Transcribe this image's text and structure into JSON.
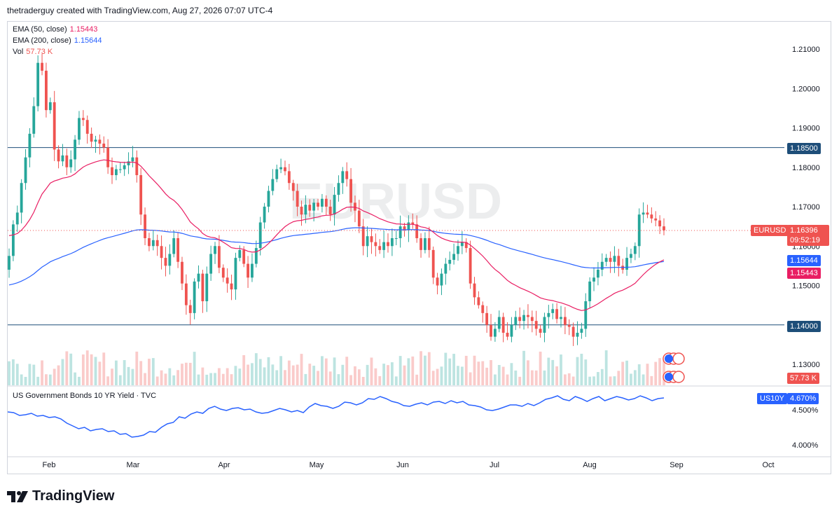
{
  "header": {
    "byline": "thetraderguy created with TradingView.com, Aug 27, 2026 07:07 UTC-4"
  },
  "watermark": "EURUSD",
  "legend": {
    "ema50": {
      "label": "EMA (50, close)",
      "value": "1.15443",
      "color": "#e91e63"
    },
    "ema200": {
      "label": "EMA (200, close)",
      "value": "1.15644",
      "color": "#2962ff"
    },
    "vol": {
      "label": "Vol",
      "value": "57.73 K",
      "color": "#ef5350"
    }
  },
  "sublegend": {
    "label": "US Government Bonds 10 YR Yield · TVC"
  },
  "price_axis": {
    "ticks": [
      "1.21000",
      "1.20000",
      "1.19000",
      "1.18000",
      "1.17000",
      "1.16000",
      "1.15000",
      "1.14000",
      "1.13000"
    ]
  },
  "yield_axis": {
    "ticks": [
      "4.500%",
      "4.000%"
    ]
  },
  "x_axis": {
    "months": [
      "Feb",
      "Mar",
      "Apr",
      "May",
      "Jun",
      "Jul",
      "Aug",
      "Sep",
      "Oct"
    ]
  },
  "tags": {
    "level_high": "1.18500",
    "level_low": "1.14000",
    "symbol": "EURUSD",
    "last_price": "1.16396",
    "countdown": "09:52:19",
    "ema200_tag": "1.15644",
    "ema50_tag": "1.15443",
    "vol_tag": "57.73 K",
    "yield_symbol": "US10Y",
    "yield_value": "4.670%"
  },
  "colors": {
    "up": "#26a69a",
    "down": "#ef5350",
    "ema50": "#e91e63",
    "ema200": "#2962ff",
    "level": "#1e4e79",
    "yield": "#2962ff"
  },
  "footer": {
    "brand": "TradingView"
  },
  "chart_data": [
    {
      "type": "candlestick",
      "title": "EURUSD",
      "horizontal_levels": [
        1.185,
        1.14
      ],
      "last_price": 1.16396,
      "ylim": [
        1.127,
        1.216
      ],
      "x_months": [
        "Feb",
        "Mar",
        "Apr",
        "May",
        "Jun",
        "Jul",
        "Aug",
        "Sep",
        "Oct"
      ],
      "closes": [
        1.1575,
        1.1655,
        1.1685,
        1.176,
        1.1825,
        1.1885,
        1.1955,
        1.2065,
        1.2045,
        1.1945,
        1.1965,
        1.1845,
        1.1815,
        1.183,
        1.18,
        1.182,
        1.187,
        1.1925,
        1.192,
        1.1885,
        1.1865,
        1.187,
        1.186,
        1.185,
        1.18,
        1.178,
        1.1795,
        1.1795,
        1.1805,
        1.1815,
        1.1825,
        1.178,
        1.168,
        1.162,
        1.16,
        1.1615,
        1.16,
        1.157,
        1.155,
        1.158,
        1.162,
        1.156,
        1.1505,
        1.145,
        1.143,
        1.151,
        1.153,
        1.146,
        1.153,
        1.158,
        1.16,
        1.1545,
        1.152,
        1.1505,
        1.149,
        1.157,
        1.159,
        1.1555,
        1.152,
        1.1555,
        1.1595,
        1.166,
        1.17,
        1.174,
        1.177,
        1.1795,
        1.18,
        1.179,
        1.176,
        1.174,
        1.17,
        1.168,
        1.1705,
        1.169,
        1.171,
        1.17,
        1.172,
        1.17,
        1.168,
        1.173,
        1.176,
        1.179,
        1.177,
        1.171,
        1.169,
        1.165,
        1.16,
        1.1625,
        1.161,
        1.16,
        1.159,
        1.161,
        1.16,
        1.162,
        1.162,
        1.165,
        1.164,
        1.166,
        1.1655,
        1.162,
        1.159,
        1.162,
        1.159,
        1.152,
        1.15,
        1.153,
        1.1555,
        1.1565,
        1.158,
        1.16,
        1.161,
        1.1595,
        1.1505,
        1.147,
        1.145,
        1.143,
        1.14,
        1.137,
        1.139,
        1.142,
        1.138,
        1.137,
        1.14,
        1.142,
        1.141,
        1.1425,
        1.142,
        1.141,
        1.139,
        1.138,
        1.142,
        1.143,
        1.144,
        1.1415,
        1.142,
        1.14,
        1.1395,
        1.137,
        1.138,
        1.139,
        1.146,
        1.151,
        1.152,
        1.154,
        1.156,
        1.157,
        1.156,
        1.1575,
        1.155,
        1.154,
        1.157,
        1.158,
        1.16,
        1.168,
        1.1685,
        1.168,
        1.167,
        1.1665,
        1.165,
        1.164
      ]
    },
    {
      "type": "line",
      "title": "US Government Bonds 10 YR Yield · TVC",
      "ylim": [
        3.95,
        4.75
      ],
      "y_ticks": [
        "4.500%",
        "4.000%"
      ],
      "values": [
        4.47,
        4.46,
        4.42,
        4.43,
        4.45,
        4.41,
        4.42,
        4.39,
        4.4,
        4.37,
        4.31,
        4.27,
        4.23,
        4.25,
        4.2,
        4.22,
        4.23,
        4.19,
        4.2,
        4.15,
        4.16,
        4.11,
        4.12,
        4.14,
        4.19,
        4.18,
        4.25,
        4.3,
        4.32,
        4.4,
        4.38,
        4.44,
        4.47,
        4.45,
        4.52,
        4.55,
        4.51,
        4.49,
        4.52,
        4.53,
        4.5,
        4.51,
        4.47,
        4.45,
        4.46,
        4.49,
        4.52,
        4.5,
        4.47,
        4.49,
        4.46,
        4.54,
        4.59,
        4.56,
        4.55,
        4.52,
        4.55,
        4.61,
        4.6,
        4.57,
        4.6,
        4.66,
        4.65,
        4.69,
        4.66,
        4.62,
        4.6,
        4.56,
        4.55,
        4.58,
        4.6,
        4.57,
        4.61,
        4.62,
        4.59,
        4.63,
        4.6,
        4.62,
        4.57,
        4.56,
        4.54,
        4.5,
        4.49,
        4.51,
        4.54,
        4.57,
        4.57,
        4.55,
        4.59,
        4.56,
        4.6,
        4.65,
        4.67,
        4.7,
        4.65,
        4.63,
        4.69,
        4.66,
        4.62,
        4.66,
        4.69,
        4.63,
        4.66,
        4.69,
        4.67,
        4.64,
        4.66,
        4.7,
        4.67,
        4.63,
        4.66,
        4.67
      ]
    }
  ]
}
